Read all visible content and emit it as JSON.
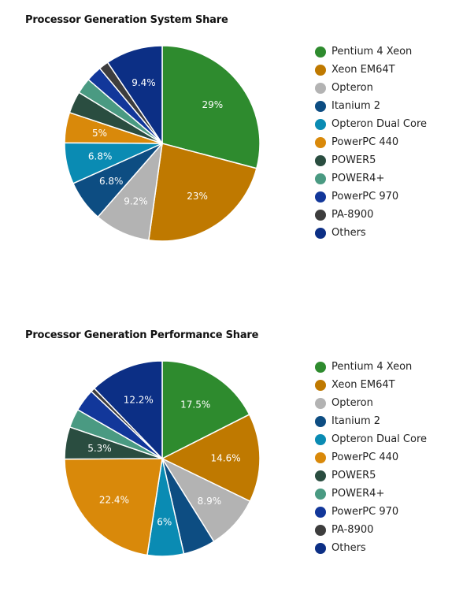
{
  "chart_data": [
    {
      "type": "pie",
      "title": "Processor Generation System Share",
      "categories": [
        "Pentium 4 Xeon",
        "Xeon EM64T",
        "Opteron",
        "Itanium 2",
        "Opteron Dual Core",
        "PowerPC 440",
        "POWER5",
        "POWER4+",
        "PowerPC 970",
        "PA-8900",
        "Others"
      ],
      "values": [
        29,
        23,
        9.2,
        6.8,
        6.8,
        5,
        3.6,
        2.6,
        2.6,
        1.6,
        9.4
      ],
      "value_labels": [
        "29%",
        "23%",
        "9.2%",
        "6.8%",
        "6.8%",
        "5%",
        "",
        "",
        "",
        "",
        "9.4%"
      ],
      "colors": [
        "#2e8b2e",
        "#bf7900",
        "#b3b3b3",
        "#0d4d82",
        "#0a8bb3",
        "#d9890a",
        "#2a4d40",
        "#4a9a82",
        "#12379a",
        "#3d3d3d",
        "#0c2f85"
      ],
      "legend_position": "right"
    },
    {
      "type": "pie",
      "title": "Processor Generation Performance Share",
      "categories": [
        "Pentium 4 Xeon",
        "Xeon EM64T",
        "Opteron",
        "Itanium 2",
        "Opteron Dual Core",
        "PowerPC 440",
        "POWER5",
        "POWER4+",
        "PowerPC 970",
        "PA-8900",
        "Others"
      ],
      "values": [
        17.5,
        14.6,
        8.9,
        5.3,
        6,
        22.4,
        5.3,
        3.1,
        3.7,
        0.7,
        12.2
      ],
      "value_labels": [
        "17.5%",
        "14.6%",
        "8.9%",
        "",
        "6%",
        "22.4%",
        "5.3%",
        "",
        "",
        "",
        "12.2%"
      ],
      "colors": [
        "#2e8b2e",
        "#bf7900",
        "#b3b3b3",
        "#0d4d82",
        "#0a8bb3",
        "#d9890a",
        "#2a4d40",
        "#4a9a82",
        "#12379a",
        "#3d3d3d",
        "#0c2f85"
      ],
      "legend_position": "right"
    }
  ]
}
